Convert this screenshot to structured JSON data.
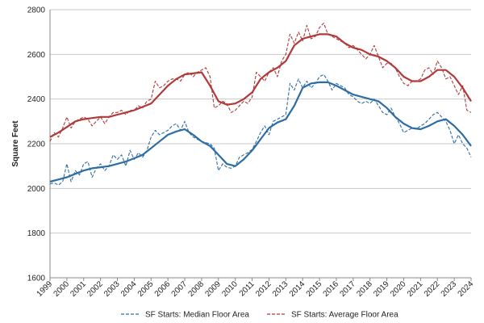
{
  "chart_data": {
    "type": "line",
    "title": "",
    "xlabel": "",
    "ylabel": "Square Feet",
    "ylim": [
      1600,
      2800
    ],
    "yticks": [
      1600,
      1800,
      2000,
      2200,
      2400,
      2600,
      2800
    ],
    "xlim": [
      1999,
      2024
    ],
    "xticks": [
      1999,
      2000,
      2001,
      2002,
      2003,
      2004,
      2005,
      2006,
      2007,
      2008,
      2009,
      2010,
      2011,
      2012,
      2013,
      2014,
      2015,
      2016,
      2017,
      2018,
      2019,
      2020,
      2021,
      2022,
      2023,
      2024
    ],
    "grid": true,
    "legend_position": "bottom",
    "series": [
      {
        "name": "SF Starts: Median Floor Area",
        "color": "#2e6da4",
        "style": "dashed",
        "x": [
          1999.0,
          1999.25,
          1999.5,
          1999.75,
          2000.0,
          2000.25,
          2000.5,
          2000.75,
          2001.0,
          2001.25,
          2001.5,
          2001.75,
          2002.0,
          2002.25,
          2002.5,
          2002.75,
          2003.0,
          2003.25,
          2003.5,
          2003.75,
          2004.0,
          2004.25,
          2004.5,
          2004.75,
          2005.0,
          2005.25,
          2005.5,
          2005.75,
          2006.0,
          2006.25,
          2006.5,
          2006.75,
          2007.0,
          2007.25,
          2007.5,
          2007.75,
          2008.0,
          2008.25,
          2008.5,
          2008.75,
          2009.0,
          2009.25,
          2009.5,
          2009.75,
          2010.0,
          2010.25,
          2010.5,
          2010.75,
          2011.0,
          2011.25,
          2011.5,
          2011.75,
          2012.0,
          2012.25,
          2012.5,
          2012.75,
          2013.0,
          2013.25,
          2013.5,
          2013.75,
          2014.0,
          2014.25,
          2014.5,
          2014.75,
          2015.0,
          2015.25,
          2015.5,
          2015.75,
          2016.0,
          2016.25,
          2016.5,
          2016.75,
          2017.0,
          2017.25,
          2017.5,
          2017.75,
          2018.0,
          2018.25,
          2018.5,
          2018.75,
          2019.0,
          2019.25,
          2019.5,
          2019.75,
          2020.0,
          2020.25,
          2020.5,
          2020.75,
          2021.0,
          2021.25,
          2021.5,
          2021.75,
          2022.0,
          2022.25,
          2022.5,
          2022.75,
          2023.0,
          2023.25,
          2023.5,
          2023.75,
          2024.0
        ],
        "values": [
          2020,
          2025,
          2015,
          2030,
          2110,
          2030,
          2080,
          2060,
          2110,
          2120,
          2050,
          2090,
          2110,
          2080,
          2100,
          2150,
          2130,
          2150,
          2100,
          2170,
          2130,
          2160,
          2140,
          2170,
          2230,
          2260,
          2240,
          2250,
          2260,
          2280,
          2290,
          2260,
          2300,
          2250,
          2230,
          2220,
          2210,
          2205,
          2200,
          2180,
          2080,
          2110,
          2095,
          2090,
          2100,
          2140,
          2150,
          2160,
          2175,
          2210,
          2250,
          2280,
          2240,
          2300,
          2310,
          2320,
          2330,
          2470,
          2440,
          2490,
          2450,
          2480,
          2450,
          2470,
          2500,
          2510,
          2480,
          2440,
          2470,
          2460,
          2450,
          2420,
          2410,
          2390,
          2380,
          2390,
          2380,
          2400,
          2370,
          2340,
          2330,
          2360,
          2320,
          2290,
          2250,
          2260,
          2270,
          2265,
          2280,
          2290,
          2310,
          2330,
          2340,
          2320,
          2300,
          2260,
          2200,
          2240,
          2200,
          2180,
          2140
        ]
      },
      {
        "name": "SF Starts: Average Floor Area",
        "color": "#b03a3a",
        "style": "dashed",
        "x": [
          1999.0,
          1999.25,
          1999.5,
          1999.75,
          2000.0,
          2000.25,
          2000.5,
          2000.75,
          2001.0,
          2001.25,
          2001.5,
          2001.75,
          2002.0,
          2002.25,
          2002.5,
          2002.75,
          2003.0,
          2003.25,
          2003.5,
          2003.75,
          2004.0,
          2004.25,
          2004.5,
          2004.75,
          2005.0,
          2005.25,
          2005.5,
          2005.75,
          2006.0,
          2006.25,
          2006.5,
          2006.75,
          2007.0,
          2007.25,
          2007.5,
          2007.75,
          2008.0,
          2008.25,
          2008.5,
          2008.75,
          2009.0,
          2009.25,
          2009.5,
          2009.75,
          2010.0,
          2010.25,
          2010.5,
          2010.75,
          2011.0,
          2011.25,
          2011.5,
          2011.75,
          2012.0,
          2012.25,
          2012.5,
          2012.75,
          2013.0,
          2013.25,
          2013.5,
          2013.75,
          2014.0,
          2014.25,
          2014.5,
          2014.75,
          2015.0,
          2015.25,
          2015.5,
          2015.75,
          2016.0,
          2016.25,
          2016.5,
          2016.75,
          2017.0,
          2017.25,
          2017.5,
          2017.75,
          2018.0,
          2018.25,
          2018.5,
          2018.75,
          2019.0,
          2019.25,
          2019.5,
          2019.75,
          2020.0,
          2020.25,
          2020.5,
          2020.75,
          2021.0,
          2021.25,
          2021.5,
          2021.75,
          2022.0,
          2022.25,
          2022.5,
          2022.75,
          2023.0,
          2023.25,
          2023.5,
          2023.75,
          2024.0
        ],
        "values": [
          2210,
          2250,
          2230,
          2270,
          2320,
          2270,
          2300,
          2310,
          2320,
          2310,
          2280,
          2300,
          2320,
          2290,
          2320,
          2340,
          2340,
          2350,
          2330,
          2350,
          2350,
          2370,
          2360,
          2390,
          2400,
          2480,
          2450,
          2460,
          2480,
          2490,
          2490,
          2480,
          2510,
          2520,
          2500,
          2520,
          2530,
          2540,
          2500,
          2360,
          2370,
          2390,
          2380,
          2340,
          2350,
          2370,
          2390,
          2380,
          2410,
          2520,
          2500,
          2480,
          2520,
          2540,
          2500,
          2570,
          2600,
          2690,
          2650,
          2700,
          2660,
          2730,
          2670,
          2680,
          2720,
          2740,
          2690,
          2680,
          2670,
          2660,
          2650,
          2630,
          2640,
          2620,
          2600,
          2580,
          2600,
          2640,
          2590,
          2540,
          2560,
          2560,
          2540,
          2500,
          2470,
          2460,
          2480,
          2480,
          2490,
          2530,
          2540,
          2510,
          2570,
          2540,
          2490,
          2500,
          2460,
          2420,
          2460,
          2350,
          2340
        ]
      },
      {
        "name": "",
        "color": "#2e6da4",
        "style": "solid",
        "x": [
          1999.0,
          1999.5,
          2000.0,
          2000.5,
          2001.0,
          2001.5,
          2002.0,
          2002.5,
          2003.0,
          2003.5,
          2004.0,
          2004.5,
          2005.0,
          2005.5,
          2006.0,
          2006.5,
          2007.0,
          2007.5,
          2008.0,
          2008.5,
          2009.0,
          2009.5,
          2010.0,
          2010.5,
          2011.0,
          2011.5,
          2012.0,
          2012.5,
          2013.0,
          2013.5,
          2014.0,
          2014.5,
          2015.0,
          2015.5,
          2016.0,
          2016.5,
          2017.0,
          2017.5,
          2018.0,
          2018.5,
          2019.0,
          2019.5,
          2020.0,
          2020.5,
          2021.0,
          2021.5,
          2022.0,
          2022.5,
          2023.0,
          2023.5,
          2024.0
        ],
        "values": [
          2030,
          2040,
          2050,
          2065,
          2080,
          2090,
          2095,
          2100,
          2110,
          2120,
          2135,
          2150,
          2180,
          2210,
          2240,
          2255,
          2265,
          2240,
          2210,
          2190,
          2150,
          2110,
          2100,
          2130,
          2170,
          2220,
          2270,
          2295,
          2310,
          2370,
          2450,
          2470,
          2475,
          2475,
          2460,
          2440,
          2420,
          2410,
          2400,
          2390,
          2360,
          2320,
          2290,
          2270,
          2265,
          2280,
          2300,
          2310,
          2280,
          2240,
          2190
        ]
      },
      {
        "name": "",
        "color": "#b03a3a",
        "style": "solid",
        "x": [
          1999.0,
          1999.5,
          2000.0,
          2000.5,
          2001.0,
          2001.5,
          2002.0,
          2002.5,
          2003.0,
          2003.5,
          2004.0,
          2004.5,
          2005.0,
          2005.5,
          2006.0,
          2006.5,
          2007.0,
          2007.5,
          2008.0,
          2008.5,
          2009.0,
          2009.5,
          2010.0,
          2010.5,
          2011.0,
          2011.5,
          2012.0,
          2012.5,
          2013.0,
          2013.5,
          2014.0,
          2014.5,
          2015.0,
          2015.5,
          2016.0,
          2016.5,
          2017.0,
          2017.5,
          2018.0,
          2018.5,
          2019.0,
          2019.5,
          2020.0,
          2020.5,
          2021.0,
          2021.5,
          2022.0,
          2022.5,
          2023.0,
          2023.5,
          2024.0
        ],
        "values": [
          2230,
          2250,
          2275,
          2300,
          2310,
          2315,
          2320,
          2320,
          2330,
          2340,
          2350,
          2365,
          2380,
          2420,
          2460,
          2490,
          2510,
          2515,
          2520,
          2460,
          2390,
          2375,
          2380,
          2400,
          2430,
          2490,
          2520,
          2540,
          2570,
          2640,
          2670,
          2680,
          2690,
          2690,
          2680,
          2650,
          2630,
          2620,
          2600,
          2590,
          2570,
          2540,
          2500,
          2480,
          2480,
          2500,
          2530,
          2530,
          2500,
          2450,
          2390
        ]
      }
    ]
  }
}
